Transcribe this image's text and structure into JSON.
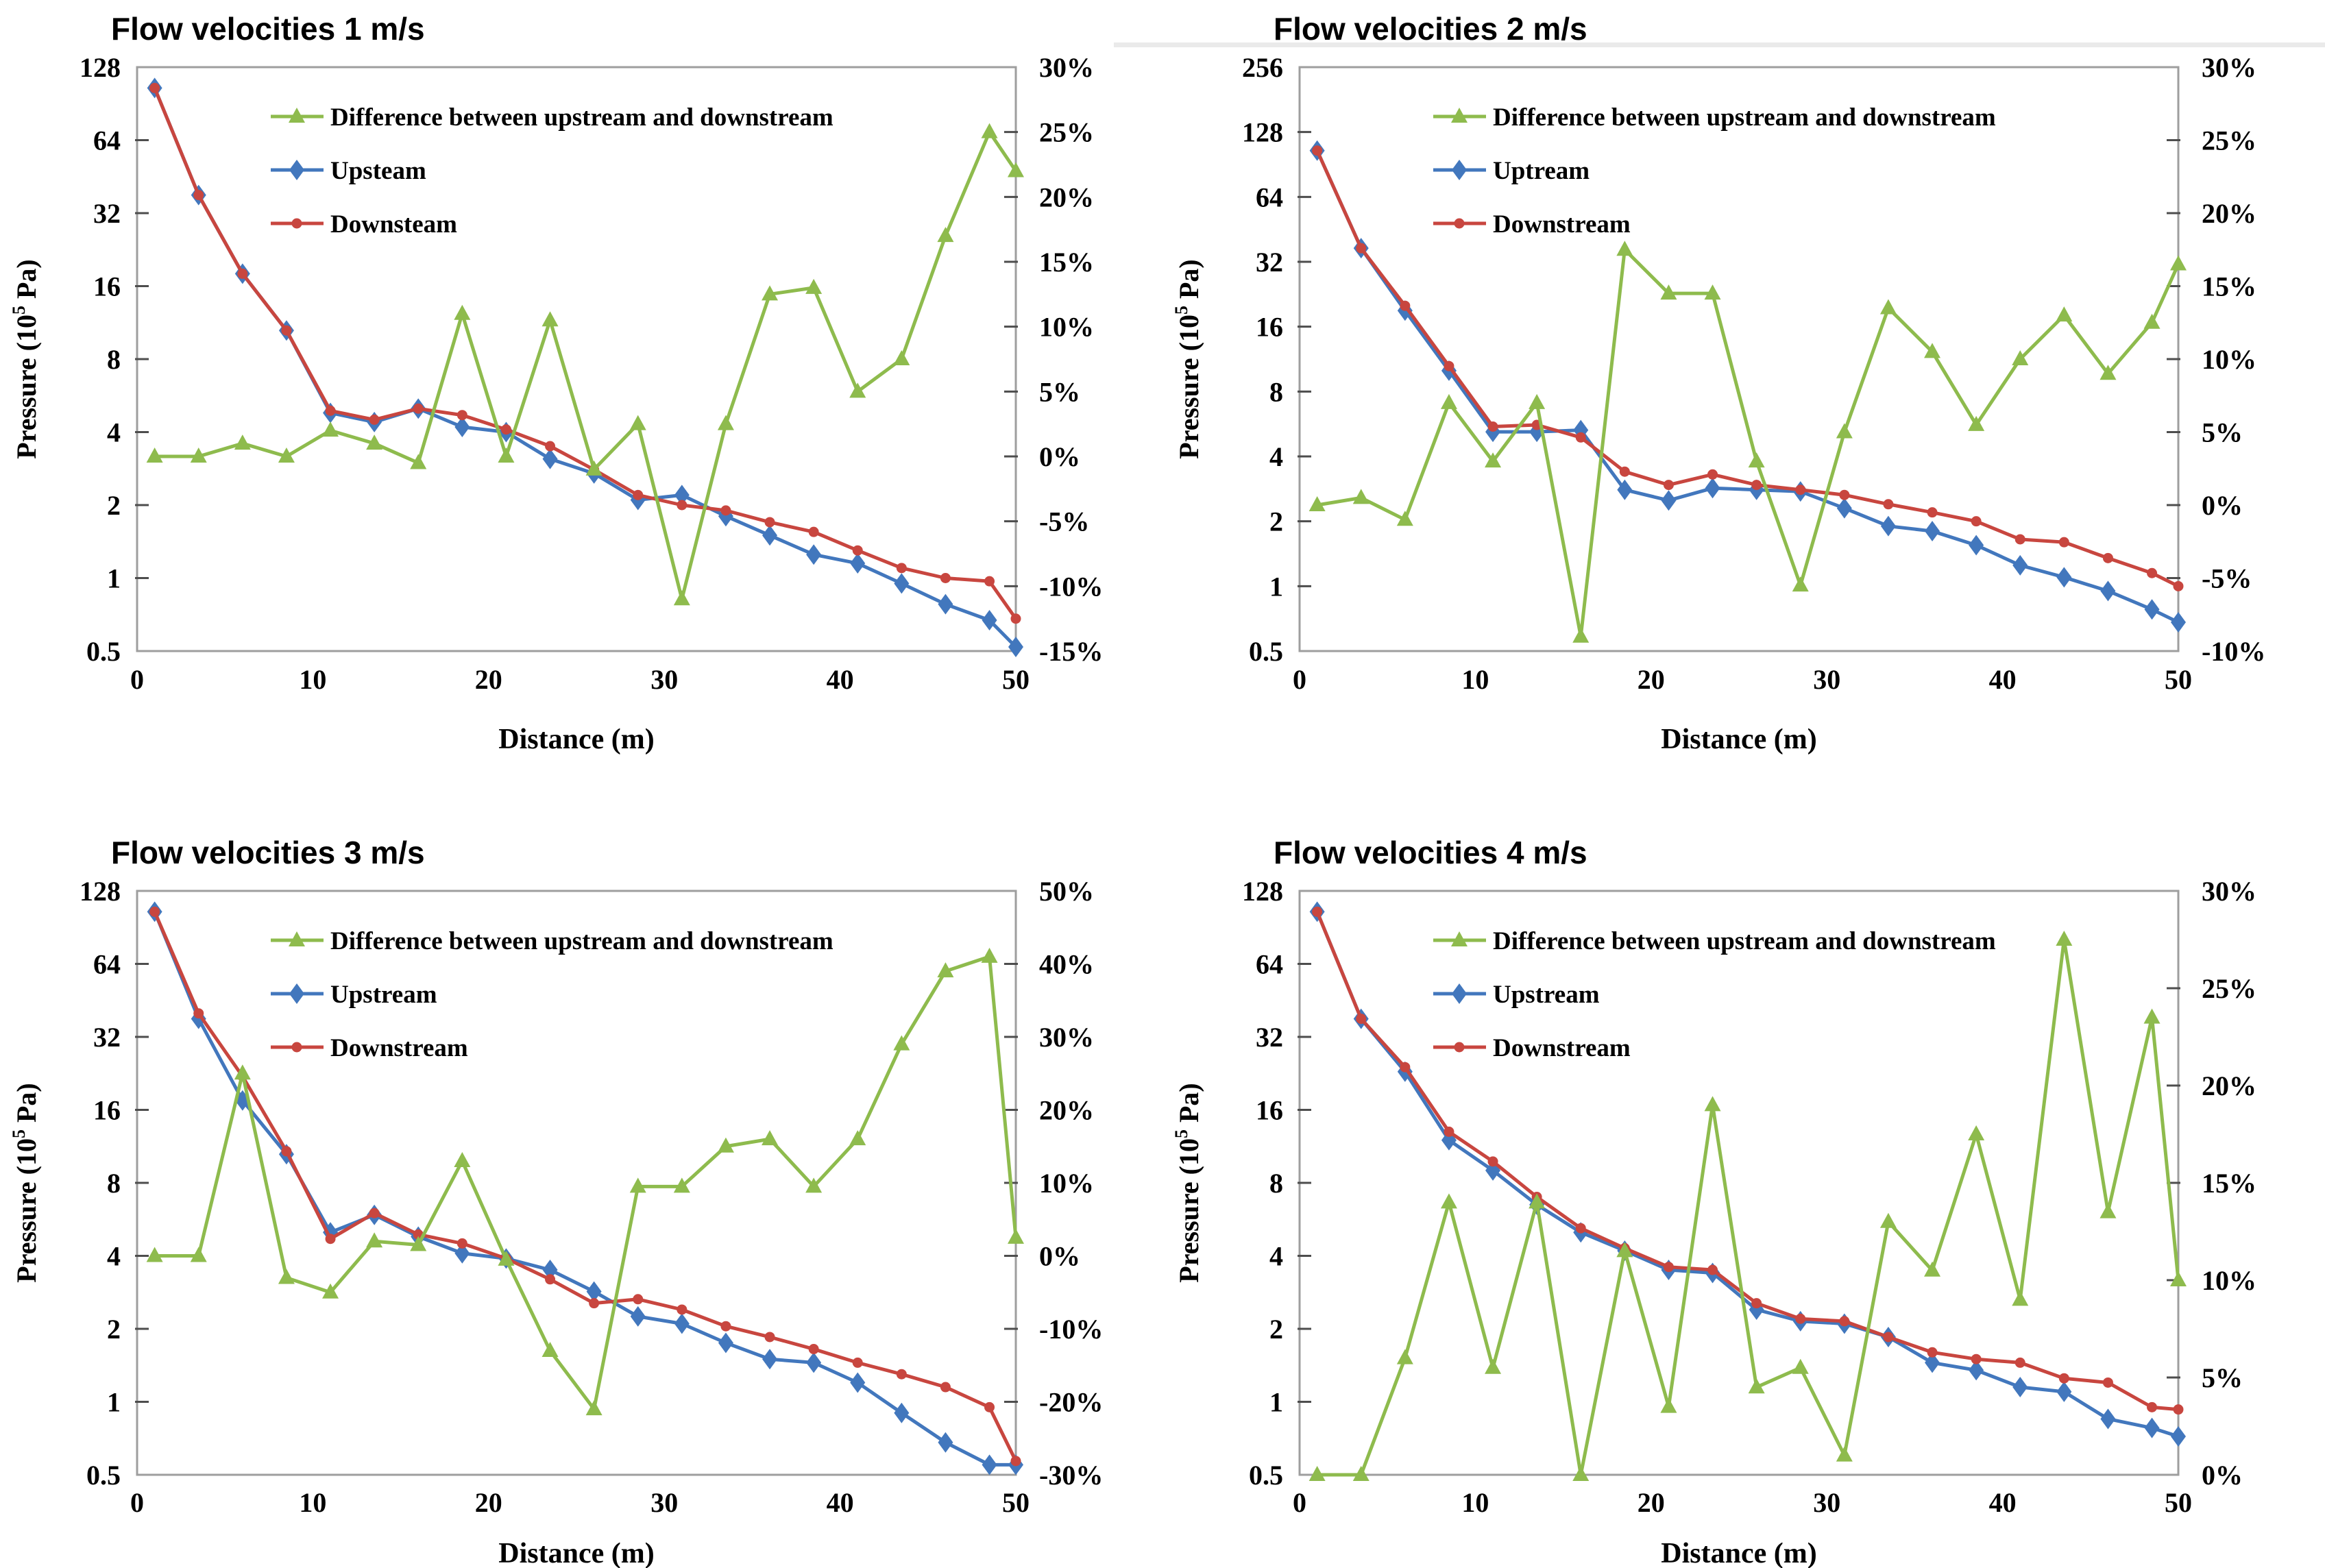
{
  "figure": {
    "background": "#ffffff",
    "border_color": "#9e9e9e",
    "tick_color": "#4d4d4d",
    "text_color": "#000000"
  },
  "chart_data": [
    {
      "type": "line",
      "title": "Flow velocities 1 m/s",
      "xlabel": "Distance (m)",
      "ylabel_left": {
        "pre": "Pressure (10",
        "sup": "5",
        "post": " Pa)"
      },
      "x_range": [
        0,
        50
      ],
      "x_ticks": [
        "0",
        "10",
        "20",
        "30",
        "40",
        "50"
      ],
      "left_axis": {
        "scale": "log2",
        "min": 0.5,
        "max": 128,
        "tick_labels": [
          "128",
          "64",
          "32",
          "16",
          "8",
          "4",
          "2",
          "1",
          "0.5"
        ]
      },
      "right_axis": {
        "min": -15,
        "max": 30,
        "tick_labels": [
          "30%",
          "25%",
          "20%",
          "15%",
          "10%",
          "5%",
          "0%",
          "-5%",
          "-10%",
          "-15%"
        ]
      },
      "x": [
        1,
        3.5,
        6,
        8.5,
        11,
        13.5,
        16,
        18.5,
        21,
        23.5,
        26,
        28.5,
        31,
        33.5,
        36,
        38.5,
        41,
        43.5,
        46,
        48.5,
        50
      ],
      "series": [
        {
          "name": "Difference between upstream and downstream",
          "axis": "right",
          "marker": "triangle",
          "color": "#8EBB4D",
          "values": [
            0,
            0,
            1,
            0,
            2,
            1,
            -0.5,
            11,
            0,
            10.5,
            -1,
            2.5,
            -11,
            2.5,
            12.5,
            13,
            5,
            7.5,
            17,
            25,
            22
          ]
        },
        {
          "name": "Upsteam",
          "axis": "left",
          "marker": "diamond",
          "color": "#4277BD",
          "values": [
            105,
            38,
            18,
            10.5,
            4.8,
            4.4,
            5.0,
            4.2,
            4.0,
            3.1,
            2.7,
            2.1,
            2.2,
            1.8,
            1.5,
            1.25,
            1.15,
            0.95,
            0.78,
            0.67,
            0.52
          ]
        },
        {
          "name": "Downsteam",
          "axis": "left",
          "marker": "dot",
          "color": "#C8463F",
          "values": [
            105,
            38,
            18,
            10.5,
            4.9,
            4.5,
            5.0,
            4.7,
            4.1,
            3.5,
            2.8,
            2.2,
            2.0,
            1.9,
            1.7,
            1.55,
            1.3,
            1.1,
            1.0,
            0.97,
            0.68
          ]
        }
      ],
      "legend_position": "inside-top",
      "grid": false
    },
    {
      "type": "line",
      "title": "Flow velocities 2 m/s",
      "xlabel": "Distance (m)",
      "ylabel_left": {
        "pre": "Pressure (10",
        "sup": "5",
        "post": " Pa)"
      },
      "x_range": [
        0,
        50
      ],
      "x_ticks": [
        "0",
        "10",
        "20",
        "30",
        "40",
        "50"
      ],
      "left_axis": {
        "scale": "log2",
        "min": 0.5,
        "max": 256,
        "tick_labels": [
          "256",
          "128",
          "64",
          "32",
          "16",
          "8",
          "4",
          "2",
          "1",
          "0.5"
        ]
      },
      "right_axis": {
        "min": -10,
        "max": 30,
        "tick_labels": [
          "30%",
          "25%",
          "20%",
          "15%",
          "10%",
          "5%",
          "0%",
          "-5%",
          "-10%"
        ]
      },
      "x": [
        1,
        3.5,
        6,
        8.5,
        11,
        13.5,
        16,
        18.5,
        21,
        23.5,
        26,
        28.5,
        31,
        33.5,
        36,
        38.5,
        41,
        43.5,
        46,
        48.5,
        50
      ],
      "series": [
        {
          "name": "Difference between upstream and downstream",
          "axis": "right",
          "marker": "triangle",
          "color": "#8EBB4D",
          "values": [
            0,
            0.5,
            -1,
            7,
            3,
            7,
            -9,
            17.5,
            14.5,
            14.5,
            3,
            -5.5,
            5,
            13.5,
            10.5,
            5.5,
            10,
            13,
            9,
            12.5,
            16.5
          ]
        },
        {
          "name": "Uptream",
          "axis": "left",
          "marker": "diamond",
          "color": "#4277BD",
          "values": [
            105,
            37,
            19,
            10,
            5.2,
            5.2,
            5.3,
            2.8,
            2.5,
            2.85,
            2.8,
            2.75,
            2.3,
            1.9,
            1.8,
            1.55,
            1.25,
            1.1,
            0.95,
            0.78,
            0.68
          ]
        },
        {
          "name": "Downstream",
          "axis": "left",
          "marker": "dot",
          "color": "#C8463F",
          "values": [
            105,
            37,
            20,
            10.5,
            5.5,
            5.6,
            4.9,
            3.4,
            2.95,
            3.3,
            2.95,
            2.8,
            2.65,
            2.4,
            2.2,
            2.0,
            1.65,
            1.6,
            1.35,
            1.15,
            1.0
          ]
        }
      ],
      "legend_position": "inside-top",
      "grid": false
    },
    {
      "type": "line",
      "title": "Flow velocities 3 m/s",
      "xlabel": "Distance (m)",
      "ylabel_left": {
        "pre": "Pressure (10",
        "sup": "5",
        "post": " Pa)"
      },
      "x_range": [
        0,
        50
      ],
      "x_ticks": [
        "0",
        "10",
        "20",
        "30",
        "40",
        "50"
      ],
      "left_axis": {
        "scale": "log2",
        "min": 0.5,
        "max": 128,
        "tick_labels": [
          "128",
          "64",
          "32",
          "16",
          "8",
          "4",
          "2",
          "1",
          "0.5"
        ]
      },
      "right_axis": {
        "min": -30,
        "max": 50,
        "tick_labels": [
          "50%",
          "40%",
          "30%",
          "20%",
          "10%",
          "0%",
          "-10%",
          "-20%",
          "-30%"
        ]
      },
      "x": [
        1,
        3.5,
        6,
        8.5,
        11,
        13.5,
        16,
        18.5,
        21,
        23.5,
        26,
        28.5,
        31,
        33.5,
        36,
        38.5,
        41,
        43.5,
        46,
        48.5,
        50
      ],
      "series": [
        {
          "name": "Difference between upstream and downstream",
          "axis": "right",
          "marker": "triangle",
          "color": "#8EBB4D",
          "values": [
            0,
            0,
            25,
            -3,
            -5,
            2,
            1.5,
            13,
            -0.5,
            -13,
            -21,
            9.5,
            9.5,
            15,
            16,
            9.5,
            16,
            29,
            39,
            41,
            2.5
          ]
        },
        {
          "name": "Upstream",
          "axis": "left",
          "marker": "diamond",
          "color": "#4277BD",
          "values": [
            105,
            38,
            17.5,
            10.5,
            5.0,
            5.9,
            4.8,
            4.1,
            3.9,
            3.5,
            2.85,
            2.25,
            2.1,
            1.75,
            1.5,
            1.45,
            1.2,
            0.9,
            0.68,
            0.55,
            0.55
          ]
        },
        {
          "name": "Downstream",
          "axis": "left",
          "marker": "dot",
          "color": "#C8463F",
          "values": [
            105,
            40,
            22,
            10.8,
            4.7,
            6.0,
            4.9,
            4.5,
            3.9,
            3.2,
            2.55,
            2.65,
            2.4,
            2.05,
            1.85,
            1.65,
            1.45,
            1.3,
            1.15,
            0.95,
            0.57
          ]
        }
      ],
      "legend_position": "inside-top",
      "grid": false
    },
    {
      "type": "line",
      "title": "Flow velocities 4 m/s",
      "xlabel": "Distance (m)",
      "ylabel_left": {
        "pre": "Pressure (10",
        "sup": "5",
        "post": " Pa)"
      },
      "x_range": [
        0,
        50
      ],
      "x_ticks": [
        "0",
        "10",
        "20",
        "30",
        "40",
        "50"
      ],
      "left_axis": {
        "scale": "log2",
        "min": 0.5,
        "max": 128,
        "tick_labels": [
          "128",
          "64",
          "32",
          "16",
          "8",
          "4",
          "2",
          "1",
          "0.5"
        ]
      },
      "right_axis": {
        "min": 0,
        "max": 30,
        "tick_labels": [
          "30%",
          "25%",
          "20%",
          "15%",
          "10%",
          "5%",
          "0%"
        ]
      },
      "x": [
        1,
        3.5,
        6,
        8.5,
        11,
        13.5,
        16,
        18.5,
        21,
        23.5,
        26,
        28.5,
        31,
        33.5,
        36,
        38.5,
        41,
        43.5,
        46,
        48.5,
        50
      ],
      "series": [
        {
          "name": "Difference between upstream and downstream",
          "axis": "right",
          "marker": "triangle",
          "color": "#8EBB4D",
          "values": [
            0,
            0,
            6,
            14,
            5.5,
            14,
            0,
            11.5,
            3.5,
            19,
            4.5,
            5.5,
            1,
            13,
            10.5,
            17.5,
            9,
            27.5,
            13.5,
            23.5,
            10
          ]
        },
        {
          "name": "Upstream",
          "axis": "left",
          "marker": "diamond",
          "color": "#4277BD",
          "values": [
            105,
            38,
            23,
            12,
            9,
            6.5,
            5.0,
            4.2,
            3.5,
            3.4,
            2.4,
            2.15,
            2.1,
            1.85,
            1.45,
            1.35,
            1.15,
            1.1,
            0.85,
            0.78,
            0.72
          ]
        },
        {
          "name": "Downstream",
          "axis": "left",
          "marker": "dot",
          "color": "#C8463F",
          "values": [
            105,
            38,
            24,
            13,
            9.8,
            7.0,
            5.2,
            4.3,
            3.6,
            3.5,
            2.55,
            2.2,
            2.15,
            1.85,
            1.6,
            1.5,
            1.45,
            1.25,
            1.2,
            0.95,
            0.93
          ]
        }
      ],
      "legend_position": "inside-top",
      "grid": false
    }
  ]
}
